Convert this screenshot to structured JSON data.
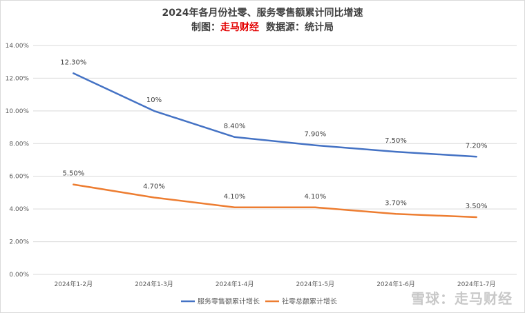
{
  "header": {
    "title": "2024年各月份社零、服务零售额累计同比增速",
    "credit_label": "制图：",
    "credit_brand": "走马财经",
    "source_label": "数据源：统计局"
  },
  "watermark": "雪球：走马财经",
  "colors": {
    "services": "#4472c4",
    "retail": "#ed7d31",
    "grid": "#d9d9d9"
  },
  "chart_data": {
    "type": "line",
    "categories": [
      "2024年1-2月",
      "2024年1-3月",
      "2024年1-4月",
      "2024年1-5月",
      "2024年1-6月",
      "2024年1-7月"
    ],
    "series": [
      {
        "name": "服务零售额累计增长",
        "values": [
          12.3,
          10.0,
          8.4,
          7.9,
          7.5,
          7.2
        ],
        "labels": [
          "12.30%",
          "10%",
          "8.40%",
          "7.90%",
          "7.50%",
          "7.20%"
        ]
      },
      {
        "name": "社零总额累计增长",
        "values": [
          5.5,
          4.7,
          4.1,
          4.1,
          3.7,
          3.5
        ],
        "labels": [
          "5.50%",
          "4.70%",
          "4.10%",
          "4.10%",
          "3.70%",
          "3.50%"
        ]
      }
    ],
    "yticks": [
      "0.00%",
      "2.00%",
      "4.00%",
      "6.00%",
      "8.00%",
      "10.00%",
      "12.00%",
      "14.00%"
    ],
    "ylim": [
      0,
      14
    ],
    "grid": true,
    "legend_position": "bottom"
  }
}
